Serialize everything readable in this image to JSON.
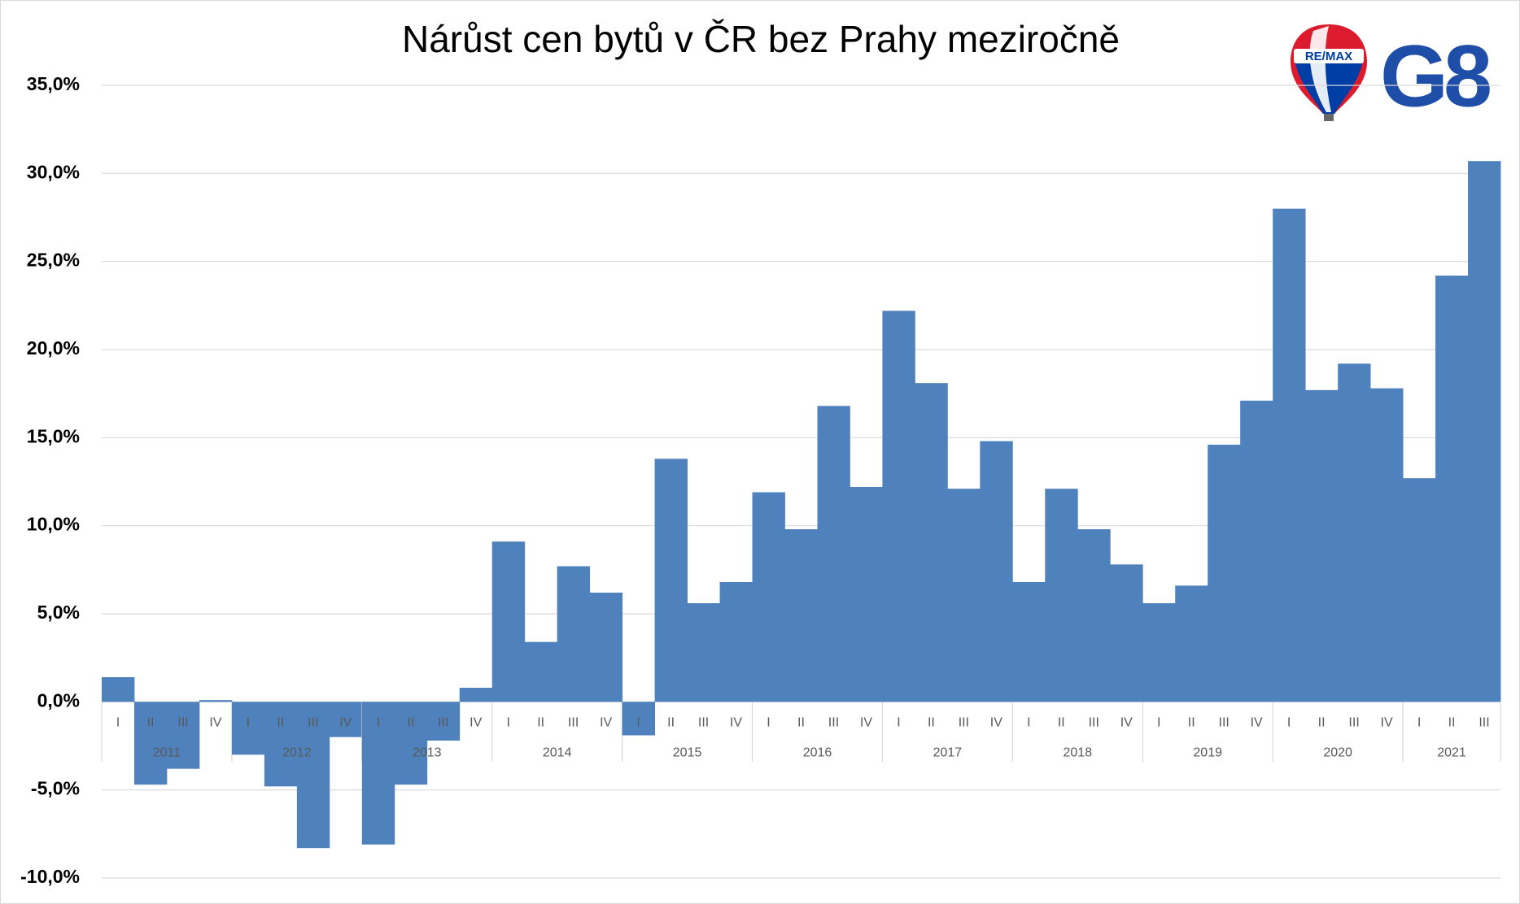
{
  "chart_data": {
    "type": "bar",
    "title": "Nárůst cen bytů v ČR bez Prahy meziročně",
    "category_groups": [
      {
        "name": "2011",
        "categories": [
          "I",
          "II",
          "III",
          "IV"
        ]
      },
      {
        "name": "2012",
        "categories": [
          "I",
          "II",
          "III",
          "IV"
        ]
      },
      {
        "name": "2013",
        "categories": [
          "I",
          "II",
          "III",
          "IV"
        ]
      },
      {
        "name": "2014",
        "categories": [
          "I",
          "II",
          "III",
          "IV"
        ]
      },
      {
        "name": "2015",
        "categories": [
          "I",
          "II",
          "III",
          "IV"
        ]
      },
      {
        "name": "2016",
        "categories": [
          "I",
          "II",
          "III",
          "IV"
        ]
      },
      {
        "name": "2017",
        "categories": [
          "I",
          "II",
          "III",
          "IV"
        ]
      },
      {
        "name": "2018",
        "categories": [
          "I",
          "II",
          "III",
          "IV"
        ]
      },
      {
        "name": "2019",
        "categories": [
          "I",
          "II",
          "III",
          "IV"
        ]
      },
      {
        "name": "2020",
        "categories": [
          "I",
          "II",
          "III",
          "IV"
        ]
      },
      {
        "name": "2021",
        "categories": [
          "I",
          "II",
          "III"
        ]
      }
    ],
    "values": [
      1.4,
      -4.7,
      -3.8,
      0.1,
      -3.0,
      -4.8,
      -8.3,
      -2.0,
      -8.1,
      -4.7,
      -2.2,
      0.8,
      9.1,
      3.4,
      7.7,
      6.2,
      -1.9,
      13.8,
      5.6,
      6.8,
      11.9,
      9.8,
      16.8,
      12.2,
      22.2,
      18.1,
      12.1,
      14.8,
      6.8,
      12.1,
      9.8,
      7.8,
      5.6,
      6.6,
      14.6,
      17.1,
      28.0,
      17.7,
      19.2,
      17.8,
      12.7,
      24.2,
      30.7
    ],
    "color": "#4f81bd",
    "ylim": [
      -10,
      35
    ],
    "yticks": [
      {
        "value": -10,
        "label": "-10,0%"
      },
      {
        "value": -5,
        "label": "-5,0%"
      },
      {
        "value": 0,
        "label": "0,0%"
      },
      {
        "value": 5,
        "label": "5,0%"
      },
      {
        "value": 10,
        "label": "10,0%"
      },
      {
        "value": 15,
        "label": "15,0%"
      },
      {
        "value": 20,
        "label": "20,0%"
      },
      {
        "value": 25,
        "label": "25,0%"
      },
      {
        "value": 30,
        "label": "30,0%"
      },
      {
        "value": 35,
        "label": "35,0%"
      }
    ],
    "grid": true
  },
  "logo": {
    "balloon_text": "RE/MAX",
    "brand": "G8"
  }
}
